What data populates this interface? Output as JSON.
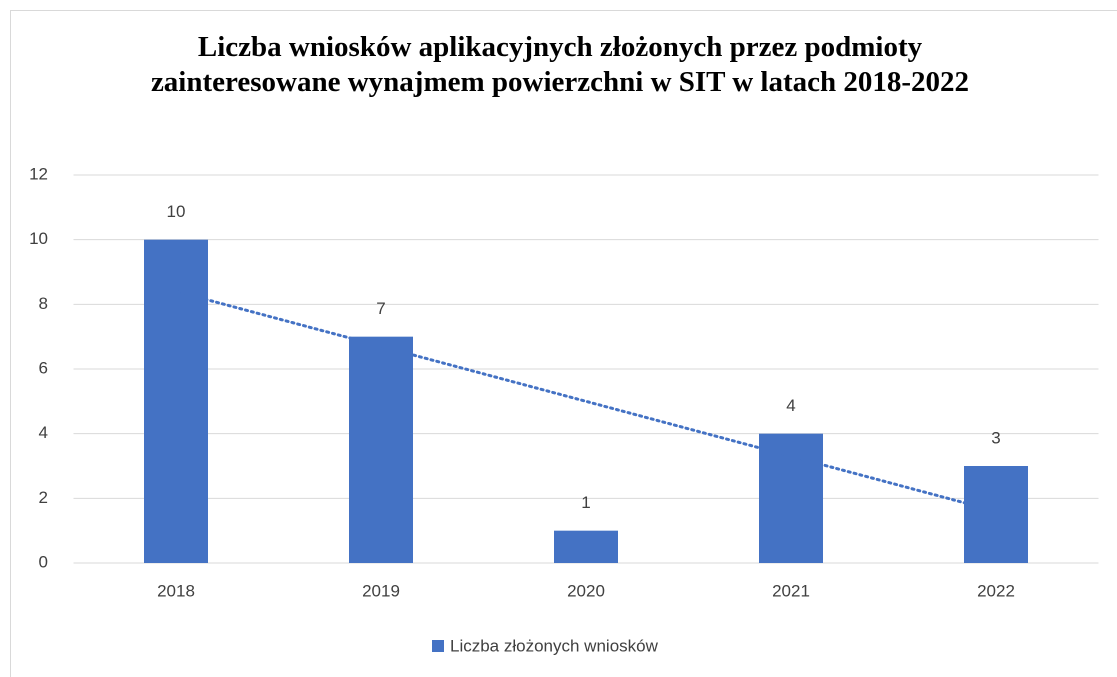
{
  "chart_data": {
    "type": "bar",
    "title": "Liczba wniosków aplikacyjnych złożonych przez podmioty zainteresowane wynajmem powierzchni w SIT w latach 2018-2022",
    "categories": [
      "2018",
      "2019",
      "2020",
      "2021",
      "2022"
    ],
    "series": [
      {
        "name": "Liczba złożonych wniosków",
        "color": "#4472c4",
        "values": [
          10,
          7,
          1,
          4,
          3
        ]
      }
    ],
    "ylim": [
      0,
      12
    ],
    "yticks": [
      0,
      2,
      4,
      6,
      8,
      10,
      12
    ],
    "grid": true,
    "data_labels": true,
    "trendline": "linear",
    "legend": "bottom"
  }
}
